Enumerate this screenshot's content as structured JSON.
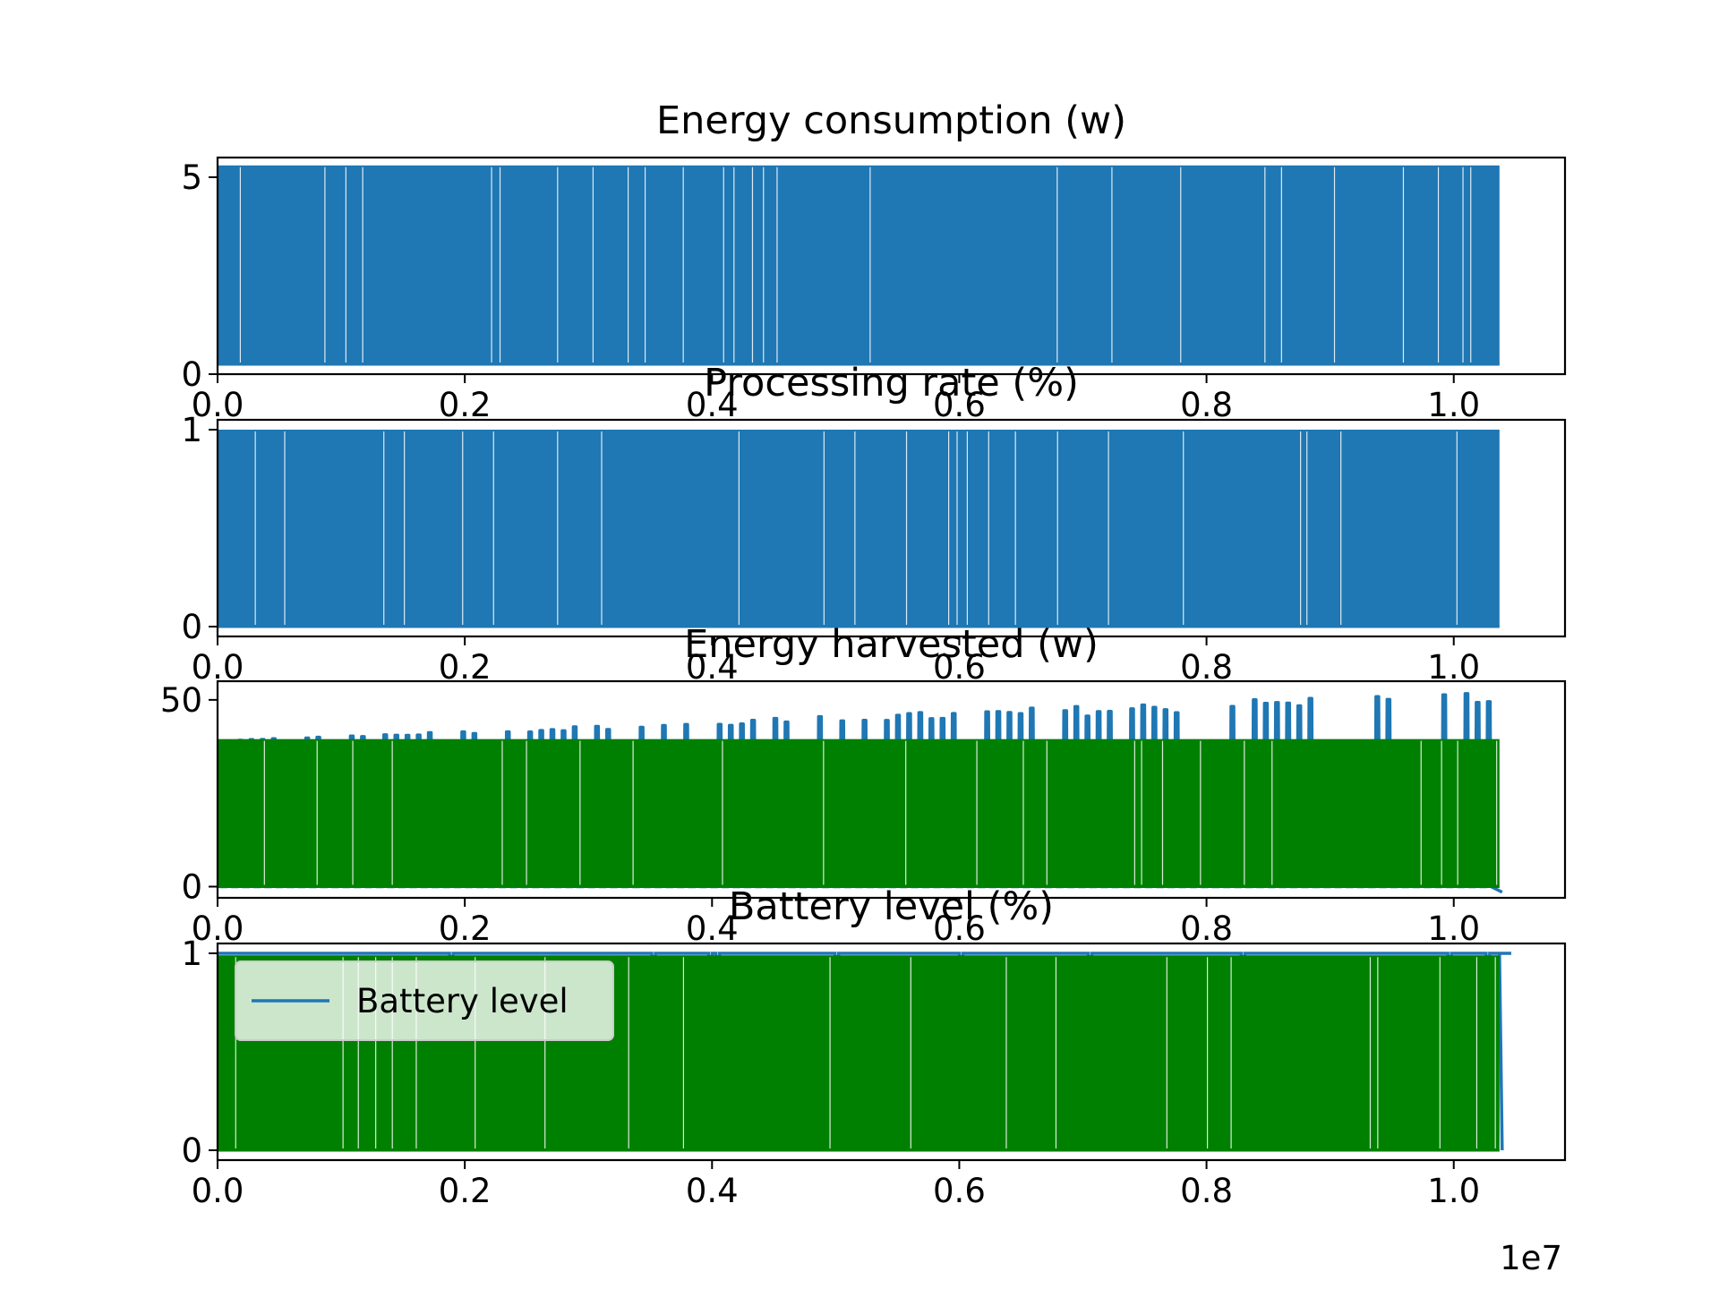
{
  "figure": {
    "offset_label": "1e7"
  },
  "colors": {
    "blue": "#1f77b4",
    "green": "#008000"
  },
  "chart_data": [
    {
      "type": "line",
      "title": "Energy consumption (w)",
      "xlim": [
        0,
        1.09
      ],
      "ylim": [
        0,
        5.5
      ],
      "x_ticks": [
        "0.0",
        "0.2",
        "0.4",
        "0.6",
        "0.8",
        "1.0"
      ],
      "y_ticks": [
        {
          "value": 0,
          "label": "0"
        },
        {
          "value": 5,
          "label": "5"
        }
      ],
      "series": [
        {
          "color": "#1f77b4",
          "pattern": "square-pulse",
          "low": 0.25,
          "high": 5.3,
          "x_start": 0.0,
          "x_end": 1.037
        }
      ]
    },
    {
      "type": "line",
      "title": "Processing rate (%)",
      "xlim": [
        0,
        1.09
      ],
      "ylim": [
        -0.05,
        1.05
      ],
      "x_ticks": [
        "0.0",
        "0.2",
        "0.4",
        "0.6",
        "0.8",
        "1.0"
      ],
      "y_ticks": [
        {
          "value": 0,
          "label": "0"
        },
        {
          "value": 1,
          "label": "1"
        }
      ],
      "series": [
        {
          "color": "#1f77b4",
          "pattern": "square-pulse",
          "low": 0.0,
          "high": 1.0,
          "x_start": 0.0,
          "x_end": 1.037
        }
      ]
    },
    {
      "type": "line",
      "title": "Energy harvested (w)",
      "xlim": [
        0,
        1.09
      ],
      "ylim": [
        -3,
        55
      ],
      "x_ticks": [
        "0.0",
        "0.2",
        "0.4",
        "0.6",
        "0.8",
        "1.0"
      ],
      "y_ticks": [
        {
          "value": 0,
          "label": "0"
        },
        {
          "value": 50,
          "label": "50"
        }
      ],
      "series": [
        {
          "color": "#1f77b4",
          "pattern": "daily-peaks",
          "low": 0,
          "high_start": 39,
          "high_end": 53,
          "x_start": 0.0,
          "x_end": 1.037
        },
        {
          "color": "#008000",
          "pattern": "square-pulse",
          "low": 0,
          "high": 39.5,
          "x_start": 0.0,
          "x_end": 1.037
        }
      ]
    },
    {
      "type": "line",
      "title": "Battery level (%)",
      "xlim": [
        0,
        1.09
      ],
      "ylim": [
        -0.05,
        1.05
      ],
      "x_ticks": [
        "0.0",
        "0.2",
        "0.4",
        "0.6",
        "0.8",
        "1.0"
      ],
      "y_ticks": [
        {
          "value": 0,
          "label": "0"
        },
        {
          "value": 1,
          "label": "1"
        }
      ],
      "legend": {
        "label": "Battery level",
        "location": "upper-left"
      },
      "series": [
        {
          "name": "Battery level",
          "color": "#1f77b4",
          "pattern": "level",
          "low": 0.0,
          "high": 1.0,
          "x_start": 0.0,
          "x_end": 1.037
        },
        {
          "color": "#008000",
          "pattern": "square-pulse",
          "low": 0.0,
          "high": 0.99,
          "x_start": 0.0,
          "x_end": 1.037
        }
      ]
    }
  ]
}
